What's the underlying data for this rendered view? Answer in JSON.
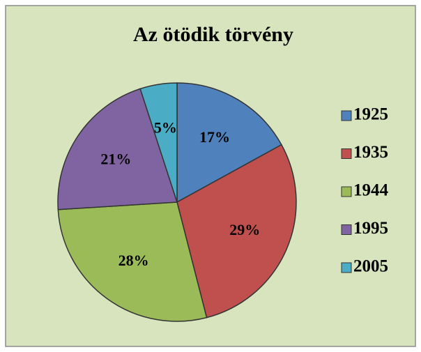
{
  "chart_data": {
    "type": "pie",
    "title": "Az ötödik törvény",
    "categories": [
      "1925",
      "1935",
      "1944",
      "1995",
      "2005"
    ],
    "values": [
      17,
      29,
      28,
      21,
      5
    ],
    "value_labels": [
      "17%",
      "29%",
      "28%",
      "21%",
      "5%"
    ],
    "colors": [
      "#4f81bd",
      "#c0504d",
      "#9bbb59",
      "#8064a2",
      "#4bacc6"
    ],
    "legend": "right"
  }
}
